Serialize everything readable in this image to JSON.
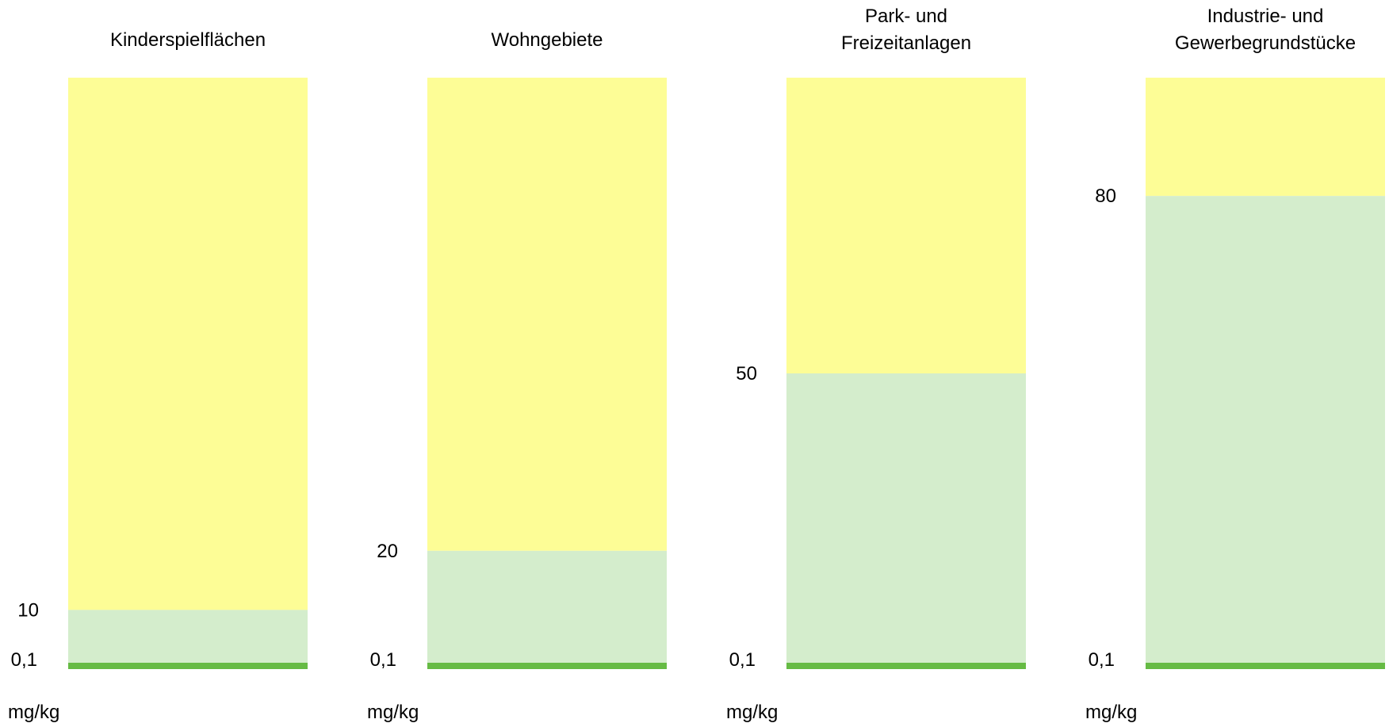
{
  "chart_data": {
    "type": "bar",
    "ylim": [
      0,
      100
    ],
    "unit": "mg/kg",
    "bands": {
      "lower_color": "#d4edcc",
      "upper_color": "#fdfd96",
      "baseline_color": "#66bb44"
    },
    "categories": [
      {
        "title_lines": [
          "Kinderspielflächen"
        ],
        "baseline": 0.1,
        "baseline_label": "0,1",
        "threshold": 10,
        "threshold_label": "10"
      },
      {
        "title_lines": [
          "Wohngebiete"
        ],
        "baseline": 0.1,
        "baseline_label": "0,1",
        "threshold": 20,
        "threshold_label": "20"
      },
      {
        "title_lines": [
          "Park- und",
          "Freizeitanlagen"
        ],
        "baseline": 0.1,
        "baseline_label": "0,1",
        "threshold": 50,
        "threshold_label": "50"
      },
      {
        "title_lines": [
          "Industrie- und",
          "Gewerbegrundstücke"
        ],
        "baseline": 0.1,
        "baseline_label": "0,1",
        "threshold": 80,
        "threshold_label": "80"
      }
    ]
  }
}
